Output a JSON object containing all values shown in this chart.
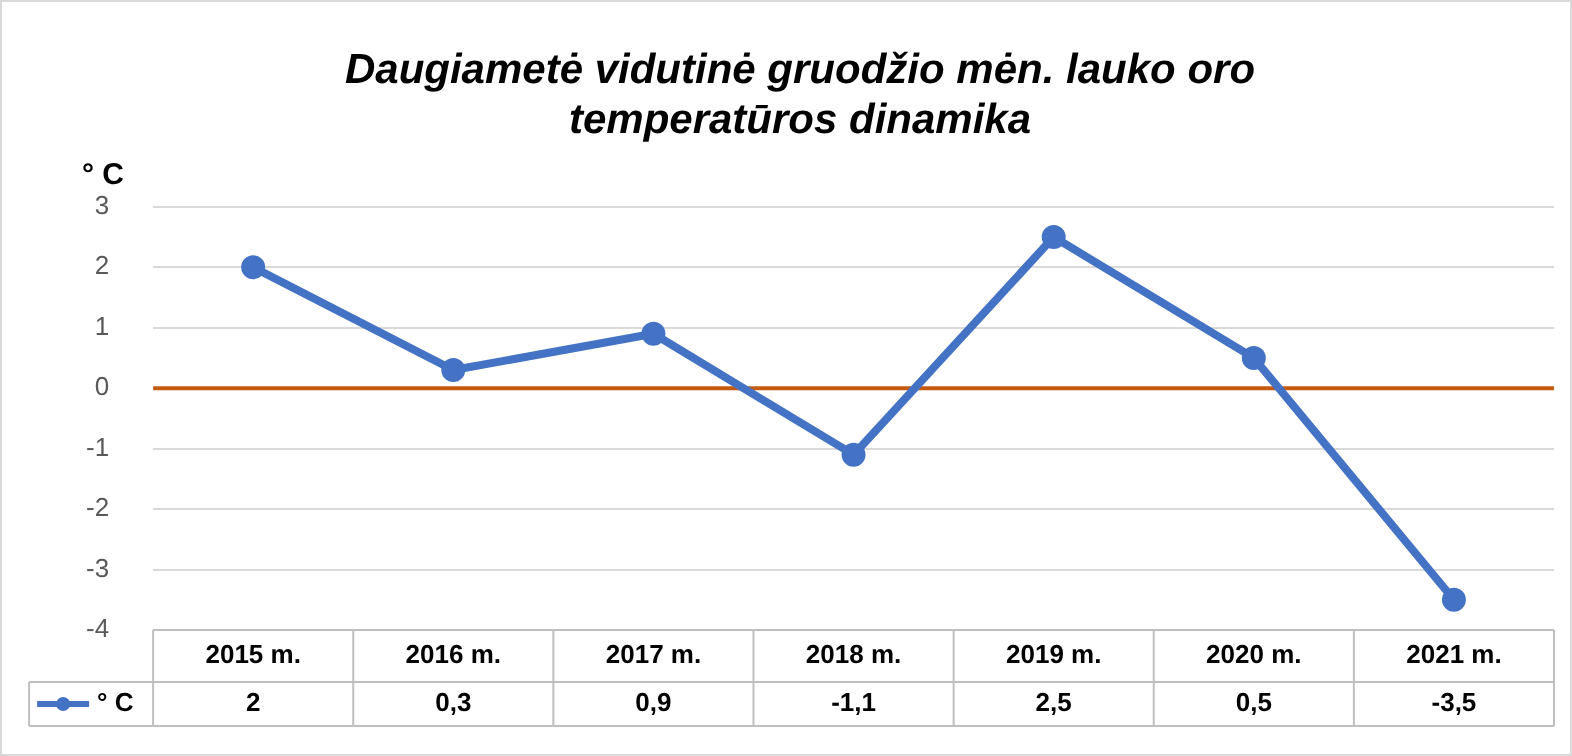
{
  "chart_data": {
    "type": "line",
    "title": "Daugiametė vidutinė gruodžio mėn. lauko oro temperatūros dinamika",
    "ylabel": "° C",
    "categories": [
      "2015 m.",
      "2016 m.",
      "2017 m.",
      "2018 m.",
      "2019 m.",
      "2020 m.",
      "2021 m."
    ],
    "series": [
      {
        "name": "° C",
        "color": "#4472c4",
        "values": [
          2,
          0.3,
          0.9,
          -1.1,
          2.5,
          0.5,
          -3.5
        ],
        "value_labels": [
          "2",
          "0,3",
          "0,9",
          "-1,1",
          "2,5",
          "0,5",
          "-3,5"
        ]
      }
    ],
    "ylim": [
      -4,
      3
    ],
    "yticks": [
      -4,
      -3,
      -2,
      -1,
      0,
      1,
      2,
      3
    ],
    "grid": "y",
    "marker": "circle",
    "line_style": "solid",
    "legend": "bottom",
    "ref_lines": [
      {
        "axis": "y",
        "value": 0,
        "color": "#c55a11"
      }
    ]
  }
}
